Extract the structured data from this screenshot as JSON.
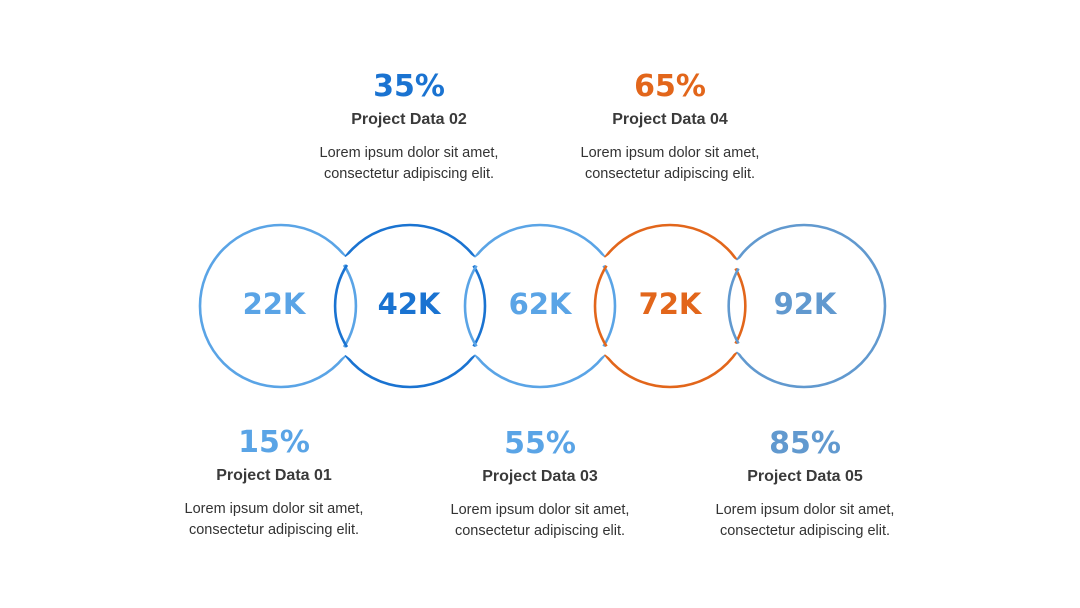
{
  "colors": {
    "light_blue": "#5aa4e6",
    "blue": "#1a73d1",
    "orange": "#e2661b",
    "steel_blue": "#6199cf"
  },
  "rings": [
    {
      "value": "22K",
      "color": "#5aa4e6"
    },
    {
      "value": "42K",
      "color": "#1a73d1"
    },
    {
      "value": "62K",
      "color": "#5aa4e6"
    },
    {
      "value": "72K",
      "color": "#e2661b"
    },
    {
      "value": "92K",
      "color": "#6199cf"
    }
  ],
  "items": [
    {
      "percent": "15%",
      "title": "Project Data 01",
      "desc_line1": "Lorem ipsum dolor sit amet,",
      "desc_line2": "consectetur adipiscing elit.",
      "color": "#5aa4e6"
    },
    {
      "percent": "35%",
      "title": "Project Data 02",
      "desc_line1": "Lorem ipsum dolor sit amet,",
      "desc_line2": "consectetur adipiscing elit.",
      "color": "#1a73d1"
    },
    {
      "percent": "55%",
      "title": "Project Data 03",
      "desc_line1": "Lorem ipsum dolor sit amet,",
      "desc_line2": "consectetur adipiscing elit.",
      "color": "#5aa4e6"
    },
    {
      "percent": "65%",
      "title": "Project Data 04",
      "desc_line1": "Lorem ipsum dolor sit amet,",
      "desc_line2": "consectetur adipiscing elit.",
      "color": "#e2661b"
    },
    {
      "percent": "85%",
      "title": "Project Data 05",
      "desc_line1": "Lorem ipsum dolor sit amet,",
      "desc_line2": "consectetur adipiscing elit.",
      "color": "#6199cf"
    }
  ]
}
